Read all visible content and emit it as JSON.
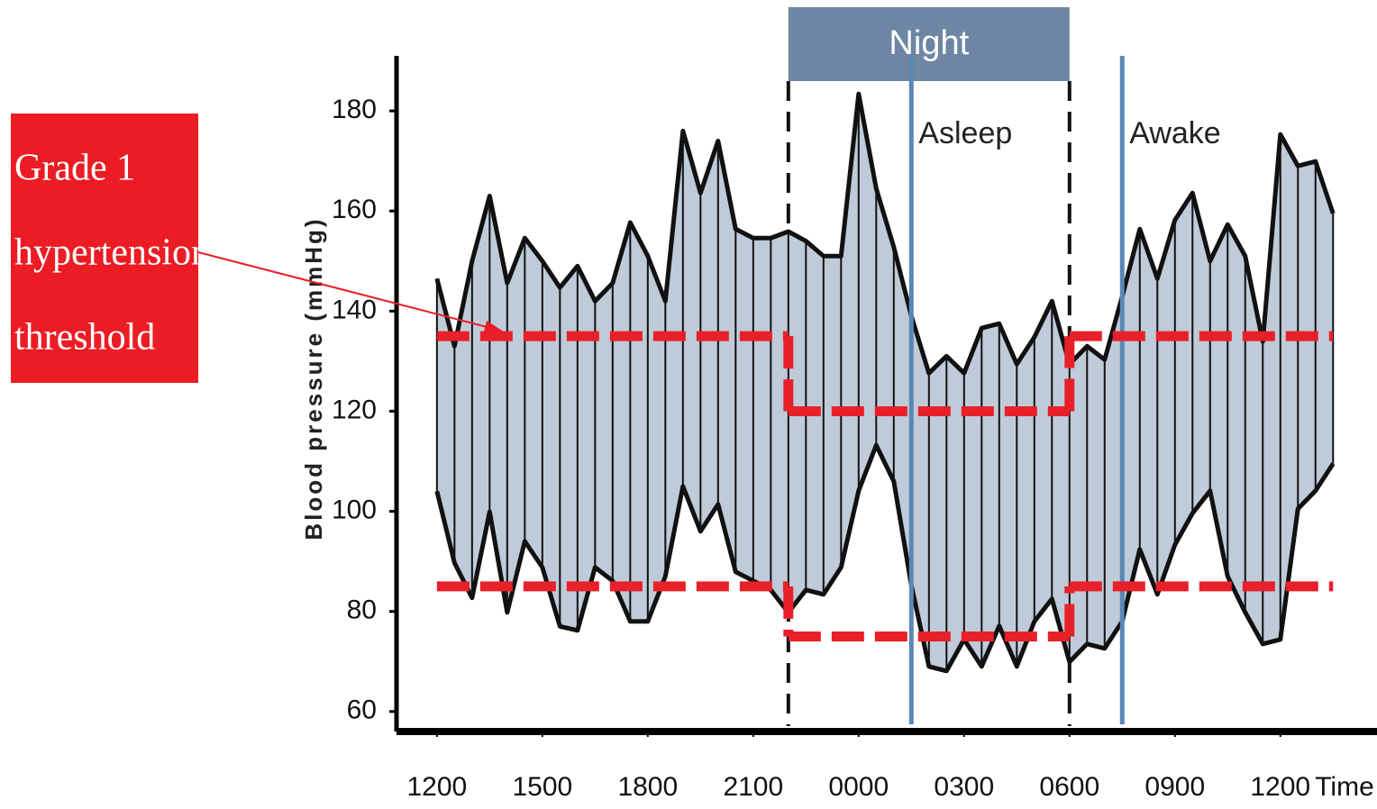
{
  "chart_data": {
    "type": "range-area",
    "y_label": "Blood pressure (mmHg)",
    "x_label": "Time",
    "color": "#bfcbd9",
    "line_color": "#111111",
    "threshold_color": "#e8202a",
    "x": [
      0,
      0.5,
      1,
      1.5,
      2,
      2.5,
      3,
      3.5,
      4,
      4.5,
      5,
      5.5,
      6,
      6.5,
      7,
      7.5,
      8,
      8.5,
      9,
      9.5,
      10,
      10.5,
      11,
      11.5,
      12,
      12.5,
      13,
      13.5,
      14,
      14.5,
      15,
      15.5,
      16,
      16.5,
      17,
      17.5,
      18,
      18.5,
      19,
      19.5,
      20,
      20.5,
      21,
      21.5,
      22,
      22.5,
      23,
      23.5,
      24,
      24.5,
      25,
      25.5
    ],
    "high_values": [
      146.5,
      133,
      150,
      163,
      145.6,
      154.6,
      150,
      144.7,
      149,
      142,
      145.6,
      157.7,
      151,
      142,
      176,
      163.6,
      174,
      156.4,
      154.6,
      154.6,
      155.9,
      154,
      151,
      151,
      183.4,
      164.5,
      152.8,
      139,
      127.6,
      131,
      127.6,
      136.6,
      137.5,
      129.4,
      134.8,
      142,
      129.4,
      133,
      130.3,
      142.9,
      156.4,
      146.5,
      158.2,
      163.6,
      150,
      157.3,
      151,
      133.9,
      175.3,
      169,
      169.9,
      159.5
    ],
    "low_values": [
      104,
      89.7,
      82.7,
      99.9,
      79.8,
      94,
      88.8,
      77,
      76.2,
      88.8,
      86.1,
      78,
      78,
      87,
      105,
      96,
      101.4,
      87.9,
      86.1,
      84.3,
      79.8,
      84.3,
      83.4,
      88.8,
      104.1,
      113.2,
      106,
      85.2,
      69,
      68.1,
      74.4,
      69,
      77.1,
      69,
      78,
      82.5,
      69.9,
      73.5,
      72.6,
      78,
      92.4,
      83.4,
      93.3,
      99.6,
      104.1,
      87,
      79.8,
      73.5,
      74.4,
      100.5,
      104.1,
      109.5
    ],
    "thresholds": [
      {
        "x": [
          0,
          10
        ],
        "upper": 135,
        "lower": 85
      },
      {
        "x": [
          10,
          18
        ],
        "upper": 120,
        "lower": 75
      },
      {
        "x": [
          18,
          25.5
        ],
        "upper": 135,
        "lower": 85
      }
    ],
    "regions": [
      {
        "label": "Night",
        "xlim": [
          10,
          18
        ],
        "color": "#6e86a3"
      }
    ],
    "markers": [
      {
        "label": "Asleep",
        "x": 13.5,
        "color": "#5b87b5"
      },
      {
        "label": "Awake",
        "x": 19.5,
        "color": "#5b87b5"
      }
    ],
    "annotation": {
      "lines": [
        "Grade 1",
        "hypertension",
        "threshold"
      ],
      "color": "#ec1c24"
    },
    "xlim": [
      -1.15,
      26.75
    ],
    "ylim": [
      56,
      191
    ],
    "xticks": [
      {
        "value": 0,
        "label": "1200"
      },
      {
        "value": 3,
        "label": "1500"
      },
      {
        "value": 6,
        "label": "1800"
      },
      {
        "value": 9,
        "label": "2100"
      },
      {
        "value": 12,
        "label": "0000"
      },
      {
        "value": 15,
        "label": "0300"
      },
      {
        "value": 18,
        "label": "0600"
      },
      {
        "value": 21,
        "label": "0900"
      },
      {
        "value": 24,
        "label": "1200"
      }
    ],
    "yticks": [
      60,
      80,
      100,
      120,
      140,
      160,
      180
    ]
  }
}
